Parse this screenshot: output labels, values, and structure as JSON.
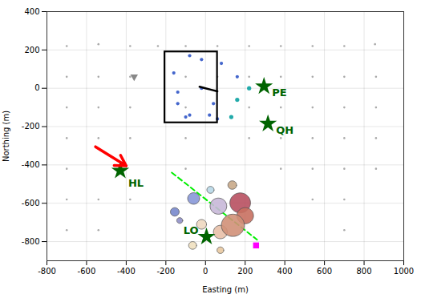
{
  "chart_data": {
    "type": "scatter",
    "xlabel": "Easting (m)",
    "ylabel": "Northing (m)",
    "xlim": [
      -800,
      1000
    ],
    "ylim": [
      -900,
      400
    ],
    "xticks": [
      -800,
      -600,
      -400,
      -200,
      0,
      200,
      400,
      600,
      800,
      1000
    ],
    "yticks": [
      -800,
      -600,
      -400,
      -200,
      0,
      200,
      400
    ],
    "grid": true,
    "series": [
      {
        "type": "scatter",
        "marker": "circle",
        "color": "#aaaaaa",
        "x": [
          -700,
          -540,
          -380,
          -240,
          -100,
          60,
          220,
          380,
          540,
          700,
          855,
          -700,
          -540,
          -380,
          -100,
          60,
          220,
          380,
          540,
          700,
          860,
          -700,
          -540,
          -380,
          -100,
          220,
          380,
          540,
          700,
          -700,
          -540,
          -380,
          -100,
          220,
          380,
          540,
          700,
          -700,
          -100,
          380,
          540,
          700,
          -700,
          -540,
          -380,
          540,
          700,
          -700,
          -540,
          700,
          860,
          860,
          860
        ],
        "values": [
          220,
          230,
          220,
          220,
          220,
          220,
          220,
          220,
          220,
          220,
          230,
          60,
          60,
          60,
          60,
          60,
          60,
          60,
          60,
          60,
          60,
          -100,
          -100,
          -100,
          -100,
          -100,
          -100,
          -100,
          -100,
          -260,
          -260,
          -260,
          -260,
          -260,
          -260,
          -260,
          -260,
          -420,
          -420,
          -420,
          -420,
          -420,
          -580,
          -580,
          -580,
          -580,
          -580,
          -740,
          -740,
          -740,
          -100,
          -260,
          -420
        ]
      },
      {
        "type": "scatter",
        "marker": "triangle-down",
        "color": "#888888",
        "x": [
          -360
        ],
        "values": [
          60
        ]
      },
      {
        "type": "scatter",
        "marker": "circle",
        "color": "#4466cc",
        "x": [
          -80,
          80,
          160,
          -140,
          -140,
          -80,
          60,
          -20,
          40,
          -160,
          -20,
          -100,
          20
        ],
        "values": [
          170,
          130,
          60,
          -20,
          -80,
          -140,
          -160,
          0,
          -80,
          80,
          150,
          -150,
          -140
        ]
      },
      {
        "type": "scatter",
        "marker": "circle",
        "color": "#22aaaa",
        "x": [
          220,
          160,
          130
        ],
        "values": [
          0,
          -60,
          -150
        ]
      },
      {
        "type": "line",
        "line_style": "solid",
        "color": "#000000",
        "x": [
          -30,
          0,
          30,
          60
        ],
        "values": [
          8,
          0,
          -8,
          -16
        ]
      },
      {
        "type": "line",
        "line_style": "dashed",
        "color": "#00ee00",
        "x": [
          -170,
          260
        ],
        "values": [
          -440,
          -790
        ]
      },
      {
        "type": "rect",
        "color": "#000000",
        "x": [
          -205,
          60
        ],
        "values": [
          -180,
          190
        ]
      },
      {
        "type": "bubble",
        "x": [
          -155,
          -60,
          -130,
          25,
          135,
          65,
          -20,
          75,
          175,
          200,
          138,
          -65,
          75
        ],
        "values": [
          -645,
          -575,
          -690,
          -530,
          -505,
          -615,
          -710,
          -750,
          -598,
          -665,
          -715,
          -820,
          -845
        ],
        "sizes": [
          22,
          30,
          15,
          18,
          22,
          42,
          25,
          35,
          52,
          42,
          58,
          20,
          17
        ],
        "colors": [
          "#7888cc",
          "#8898d8",
          "#9090c8",
          "#b8d8e8",
          "#c8a888",
          "#c8b8d8",
          "#eed8c0",
          "#e8c0a8",
          "#b85060",
          "#c87060",
          "#d09078",
          "#f0e0c0",
          "#e8c8a0"
        ]
      },
      {
        "type": "scatter",
        "marker": "star",
        "color": "darkgreen",
        "x": [
          295,
          315,
          -430,
          5
        ],
        "values": [
          10,
          -185,
          -430,
          -775
        ],
        "labels": [
          "PE",
          "QH",
          "HL",
          "LO"
        ]
      },
      {
        "type": "scatter",
        "marker": "square",
        "color": "magenta",
        "x": [
          255
        ],
        "values": [
          -820
        ]
      },
      {
        "type": "arrow",
        "color": "red",
        "x": [
          -555,
          -400
        ],
        "values": [
          -305,
          -405
        ]
      }
    ]
  }
}
